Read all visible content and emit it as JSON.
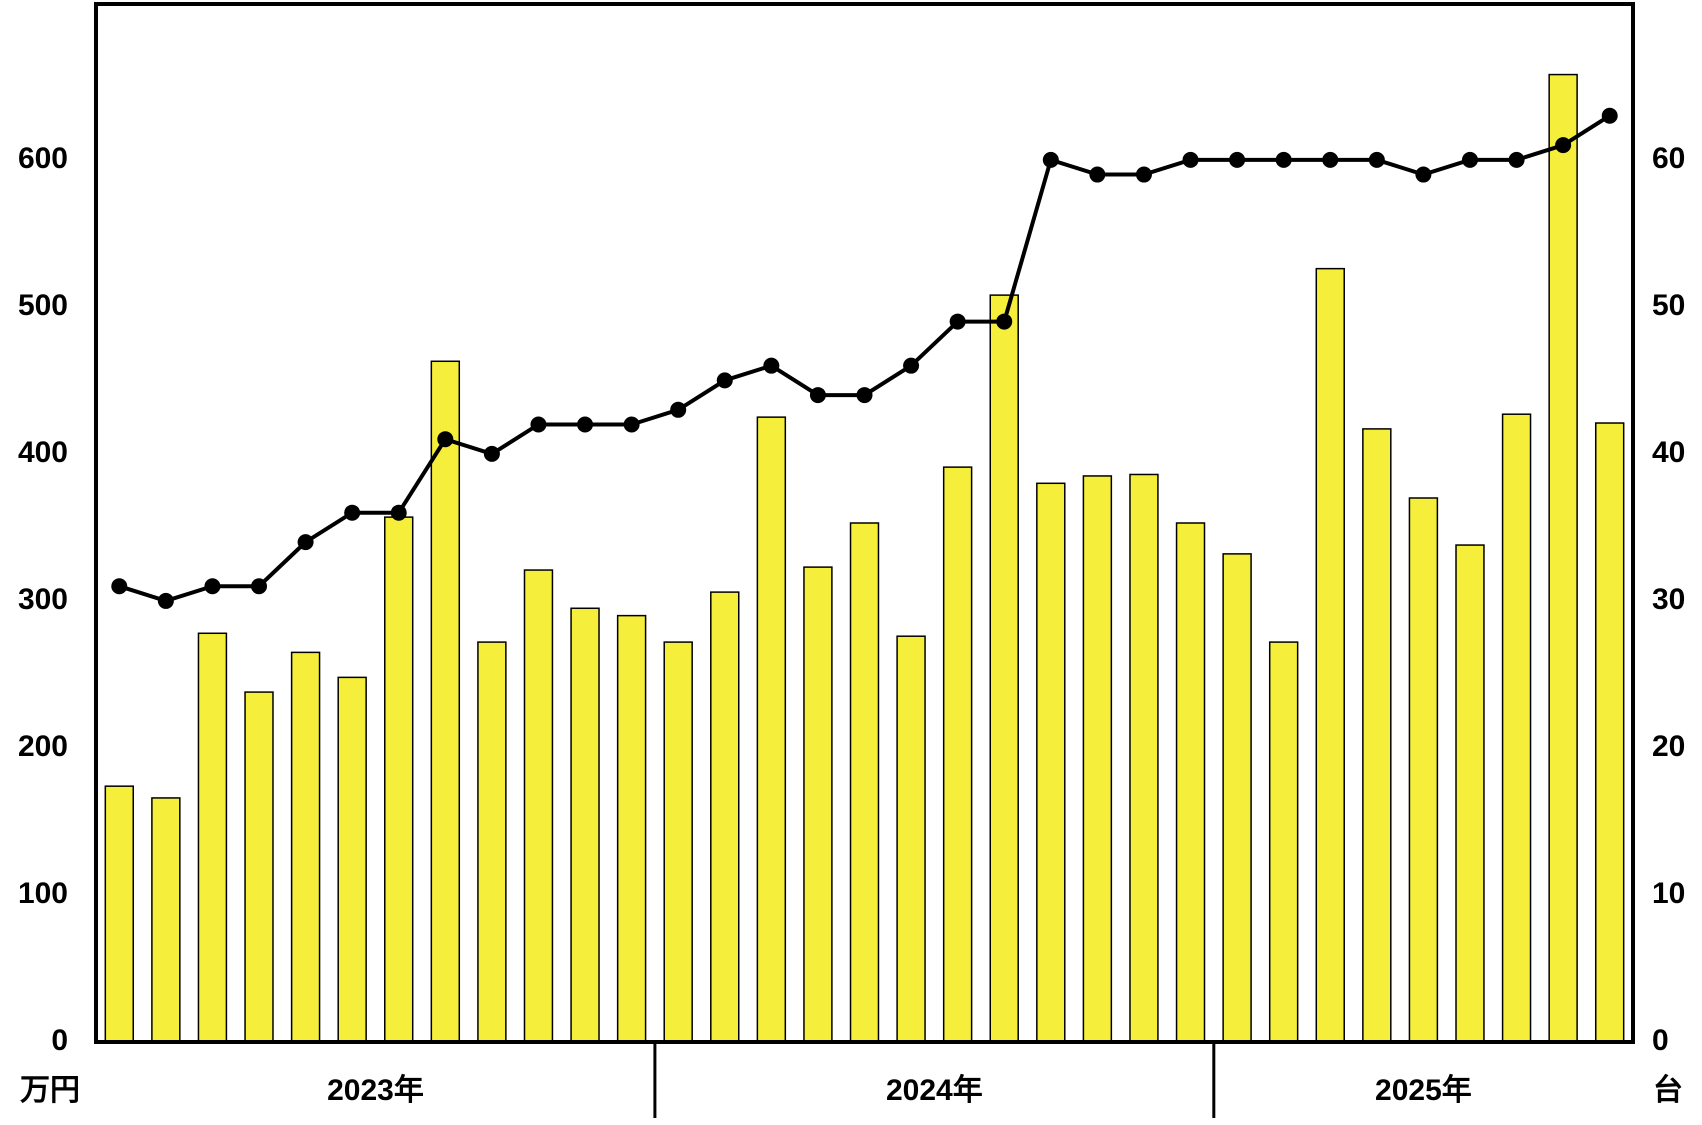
{
  "chart_data": {
    "type": "bar",
    "categories": [
      null,
      null,
      null,
      null,
      null,
      null,
      null,
      null,
      null,
      null,
      null,
      null,
      null,
      null,
      null,
      null,
      null,
      null,
      null,
      null,
      null,
      null,
      null,
      null,
      null,
      null,
      null,
      null,
      null,
      null,
      null,
      null,
      null
    ],
    "groups": [
      {
        "label": "2023年",
        "count": 12
      },
      {
        "label": "2024年",
        "count": 12
      },
      {
        "label": "2025年",
        "count": 9
      }
    ],
    "series": [
      {
        "type": "bar",
        "color": "#f5ef3b",
        "values": [
          174,
          166,
          278,
          238,
          265,
          248,
          357,
          463,
          272,
          321,
          295,
          290,
          272,
          306,
          425,
          323,
          353,
          276,
          391,
          508,
          380,
          385,
          386,
          353,
          332,
          272,
          526,
          417,
          370,
          338,
          427,
          658,
          421
        ]
      },
      {
        "type": "line",
        "axis": "y2",
        "color": "#000000",
        "values": [
          31,
          30,
          31,
          31,
          34,
          36,
          36,
          41,
          40,
          42,
          42,
          42,
          43,
          45,
          46,
          44,
          44,
          46,
          49,
          49,
          60,
          59,
          59,
          60,
          60,
          60,
          60,
          60,
          59,
          60,
          60,
          61,
          63
        ]
      }
    ],
    "ylim": [
      0,
      706
    ],
    "yticks": [
      0,
      100,
      200,
      300,
      400,
      500,
      600
    ],
    "y2lim": [
      0,
      70.6
    ],
    "y2ticks": [
      0,
      10,
      20,
      30,
      40,
      50,
      60
    ],
    "ylabel": "万円",
    "y2label": "台",
    "grid": false
  }
}
